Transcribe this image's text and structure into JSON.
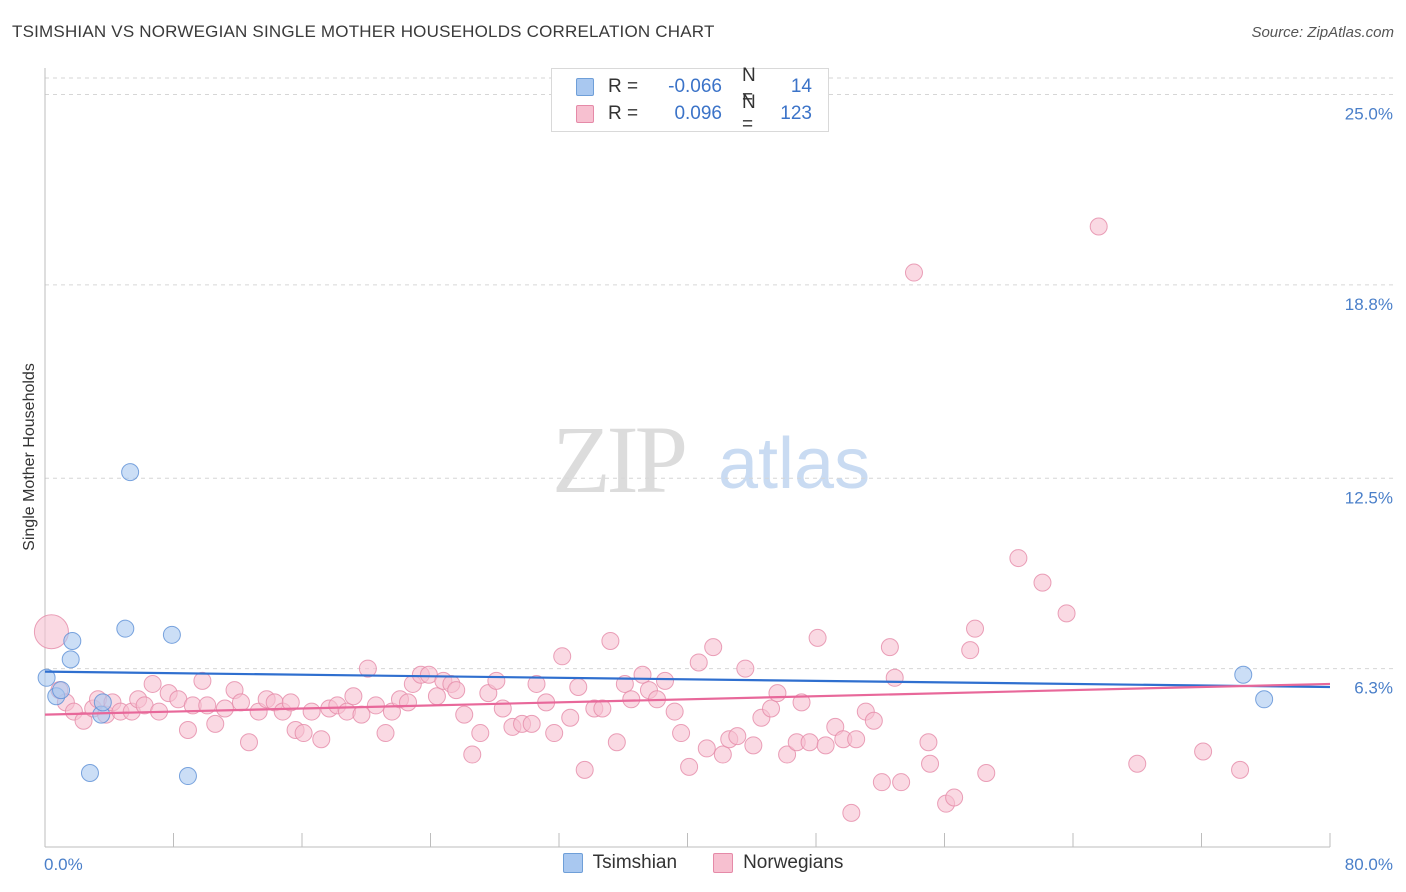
{
  "header": {
    "title": "TSIMSHIAN VS NORWEGIAN SINGLE MOTHER HOUSEHOLDS CORRELATION CHART",
    "source": "Source: ZipAtlas.com"
  },
  "watermark": {
    "zip": "ZIP",
    "atlas": "atlas"
  },
  "legend": {
    "rows": [
      {
        "r_label": "R =",
        "r_value": "-0.066",
        "n_label": "N =",
        "n_value": "14",
        "color": "#a9c8f0",
        "border": "#6f9fd8"
      },
      {
        "r_label": "R =",
        "r_value": "0.096",
        "n_label": "N =",
        "n_value": "123",
        "color": "#f7c0d0",
        "border": "#e58aa8"
      }
    ]
  },
  "bottom_legend": {
    "series1": "Tsimshian",
    "series2": "Norwegians"
  },
  "colors": {
    "tsimshian_fill": "#a9c8f0",
    "tsimshian_stroke": "#5b8fd6",
    "tsimshian_line": "#2f6fcf",
    "norwegian_fill": "#f7c0d0",
    "norwegian_stroke": "#e58aa8",
    "norwegian_line": "#e8689a",
    "tick": "#4a7fc9",
    "grid": "#d6d6d6"
  },
  "chart_data": {
    "type": "scatter",
    "title": "TSIMSHIAN VS NORWEGIAN SINGLE MOTHER HOUSEHOLDS CORRELATION CHART",
    "ylabel": "Single Mother Households",
    "xlabel": "",
    "x_tick_labels": [
      "0.0%",
      "80.0%"
    ],
    "y_tick_labels": [
      "6.3%",
      "12.5%",
      "18.8%",
      "25.0%"
    ],
    "y_ticks": [
      6.3,
      12.5,
      18.8,
      25.0
    ],
    "xlim": [
      0,
      80
    ],
    "ylim": [
      0,
      26
    ],
    "grid": true,
    "legend_placement": "top-center",
    "series": [
      {
        "name": "Tsimshian",
        "trend": {
          "x": [
            0,
            80
          ],
          "y": [
            6.2,
            5.7
          ]
        },
        "points": [
          [
            0.1,
            6.0
          ],
          [
            0.7,
            5.4
          ],
          [
            1.0,
            5.6
          ],
          [
            1.6,
            6.6
          ],
          [
            1.7,
            7.2
          ],
          [
            3.5,
            4.8
          ],
          [
            3.6,
            5.2
          ],
          [
            2.8,
            2.9
          ],
          [
            5.0,
            7.6
          ],
          [
            5.3,
            12.7
          ],
          [
            7.9,
            7.4
          ],
          [
            8.9,
            2.8
          ],
          [
            74.6,
            6.1
          ],
          [
            75.9,
            5.3
          ]
        ]
      },
      {
        "name": "Norwegians",
        "trend": {
          "x": [
            0,
            80
          ],
          "y": [
            4.8,
            5.8
          ]
        },
        "points": [
          [
            0.4,
            7.5
          ],
          [
            0.9,
            5.6
          ],
          [
            1.3,
            5.2
          ],
          [
            1.8,
            4.9
          ],
          [
            2.4,
            4.6
          ],
          [
            3.0,
            5.0
          ],
          [
            3.3,
            5.3
          ],
          [
            3.8,
            4.8
          ],
          [
            4.2,
            5.2
          ],
          [
            4.7,
            4.9
          ],
          [
            5.4,
            4.9
          ],
          [
            5.8,
            5.3
          ],
          [
            6.2,
            5.1
          ],
          [
            6.7,
            5.8
          ],
          [
            7.1,
            4.9
          ],
          [
            7.7,
            5.5
          ],
          [
            8.3,
            5.3
          ],
          [
            8.9,
            4.3
          ],
          [
            9.2,
            5.1
          ],
          [
            9.8,
            5.9
          ],
          [
            10.1,
            5.1
          ],
          [
            10.6,
            4.5
          ],
          [
            11.2,
            5.0
          ],
          [
            11.8,
            5.6
          ],
          [
            12.2,
            5.2
          ],
          [
            12.7,
            3.9
          ],
          [
            13.3,
            4.9
          ],
          [
            13.8,
            5.3
          ],
          [
            14.3,
            5.2
          ],
          [
            14.8,
            4.9
          ],
          [
            15.3,
            5.2
          ],
          [
            15.6,
            4.3
          ],
          [
            16.1,
            4.2
          ],
          [
            16.6,
            4.9
          ],
          [
            17.2,
            4.0
          ],
          [
            17.7,
            5.0
          ],
          [
            18.2,
            5.1
          ],
          [
            18.8,
            4.9
          ],
          [
            19.2,
            5.4
          ],
          [
            19.7,
            4.8
          ],
          [
            20.1,
            6.3
          ],
          [
            20.6,
            5.1
          ],
          [
            21.2,
            4.2
          ],
          [
            21.6,
            4.9
          ],
          [
            22.1,
            5.3
          ],
          [
            22.6,
            5.2
          ],
          [
            22.9,
            5.8
          ],
          [
            23.4,
            6.1
          ],
          [
            23.9,
            6.1
          ],
          [
            24.4,
            5.4
          ],
          [
            24.8,
            5.9
          ],
          [
            25.3,
            5.8
          ],
          [
            25.6,
            5.6
          ],
          [
            26.1,
            4.8
          ],
          [
            26.6,
            3.5
          ],
          [
            27.1,
            4.2
          ],
          [
            27.6,
            5.5
          ],
          [
            28.1,
            5.9
          ],
          [
            28.5,
            5.0
          ],
          [
            29.1,
            4.4
          ],
          [
            29.7,
            4.5
          ],
          [
            30.3,
            4.5
          ],
          [
            30.6,
            5.8
          ],
          [
            31.2,
            5.2
          ],
          [
            31.7,
            4.2
          ],
          [
            32.2,
            6.7
          ],
          [
            32.7,
            4.7
          ],
          [
            33.2,
            5.7
          ],
          [
            33.6,
            3.0
          ],
          [
            34.2,
            5.0
          ],
          [
            34.7,
            5.0
          ],
          [
            35.2,
            7.2
          ],
          [
            35.6,
            3.9
          ],
          [
            36.1,
            5.8
          ],
          [
            36.5,
            5.3
          ],
          [
            37.2,
            6.1
          ],
          [
            37.6,
            5.6
          ],
          [
            38.1,
            5.3
          ],
          [
            38.6,
            5.9
          ],
          [
            39.2,
            4.9
          ],
          [
            39.6,
            4.2
          ],
          [
            40.1,
            3.1
          ],
          [
            40.7,
            6.5
          ],
          [
            41.2,
            3.7
          ],
          [
            41.6,
            7.0
          ],
          [
            42.2,
            3.5
          ],
          [
            42.6,
            4.0
          ],
          [
            43.1,
            4.1
          ],
          [
            43.6,
            6.3
          ],
          [
            44.1,
            3.8
          ],
          [
            44.6,
            4.7
          ],
          [
            45.2,
            5.0
          ],
          [
            45.6,
            5.5
          ],
          [
            46.2,
            3.5
          ],
          [
            46.8,
            3.9
          ],
          [
            47.1,
            5.2
          ],
          [
            47.6,
            3.9
          ],
          [
            48.1,
            7.3
          ],
          [
            48.6,
            3.8
          ],
          [
            49.2,
            4.4
          ],
          [
            49.7,
            4.0
          ],
          [
            50.2,
            1.6
          ],
          [
            50.5,
            4.0
          ],
          [
            51.1,
            4.9
          ],
          [
            51.6,
            4.6
          ],
          [
            52.1,
            2.6
          ],
          [
            52.6,
            7.0
          ],
          [
            52.9,
            6.0
          ],
          [
            53.3,
            2.6
          ],
          [
            54.1,
            19.2
          ],
          [
            55.1,
            3.2
          ],
          [
            55.0,
            3.9
          ],
          [
            56.1,
            1.9
          ],
          [
            56.6,
            2.1
          ],
          [
            57.6,
            6.9
          ],
          [
            57.9,
            7.6
          ],
          [
            58.6,
            2.9
          ],
          [
            60.6,
            9.9
          ],
          [
            62.1,
            9.1
          ],
          [
            63.6,
            8.1
          ],
          [
            65.6,
            20.7
          ],
          [
            72.1,
            3.6
          ],
          [
            74.4,
            3.0
          ],
          [
            68.0,
            3.2
          ]
        ]
      }
    ]
  }
}
